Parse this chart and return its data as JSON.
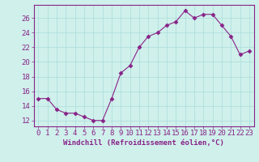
{
  "x": [
    0,
    1,
    2,
    3,
    4,
    5,
    6,
    7,
    8,
    9,
    10,
    11,
    12,
    13,
    14,
    15,
    16,
    17,
    18,
    19,
    20,
    21,
    22,
    23
  ],
  "y": [
    15,
    15,
    13.5,
    13,
    13,
    12.5,
    12,
    12,
    15,
    18.5,
    19.5,
    22,
    23.5,
    24,
    25,
    25.5,
    27,
    26,
    26.5,
    26.5,
    25,
    23.5,
    21,
    21.5
  ],
  "line_color": "#882288",
  "marker": "D",
  "marker_size": 2.5,
  "background_color": "#cff0eb",
  "grid_color": "#aaddda",
  "xlabel": "Windchill (Refroidissement éolien,°C)",
  "xlabel_color": "#882288",
  "ylabel_ticks": [
    12,
    14,
    16,
    18,
    20,
    22,
    24,
    26
  ],
  "ylim": [
    11.2,
    27.8
  ],
  "xlim": [
    -0.5,
    23.5
  ],
  "xticks": [
    0,
    1,
    2,
    3,
    4,
    5,
    6,
    7,
    8,
    9,
    10,
    11,
    12,
    13,
    14,
    15,
    16,
    17,
    18,
    19,
    20,
    21,
    22,
    23
  ],
  "tick_color": "#882288",
  "spine_color": "#882288",
  "font_size": 6.5
}
